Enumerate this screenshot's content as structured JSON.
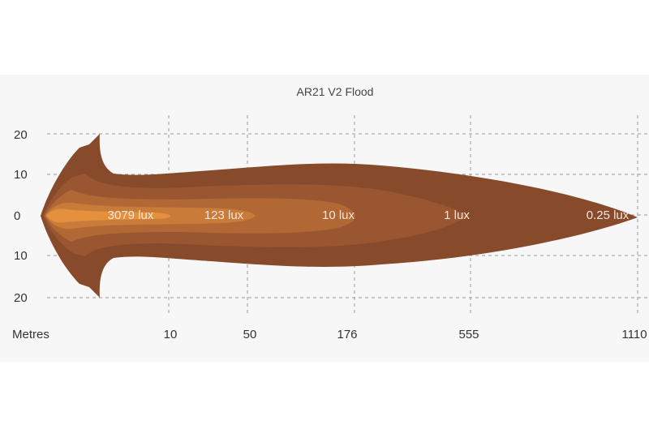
{
  "chart_data": {
    "type": "area",
    "title": "AR21 V2 Flood",
    "xlabel": "Metres",
    "x_ticks": [
      "10",
      "50",
      "176",
      "555",
      "1110"
    ],
    "y_ticks": [
      "20",
      "10",
      "0",
      "10",
      "20"
    ],
    "grid": true,
    "isolux_contours": [
      {
        "label": "0.25 lux",
        "reach_m": 1110,
        "color": "#874a2a"
      },
      {
        "label": "1 lux",
        "reach_m": 555,
        "color": "#9a5631"
      },
      {
        "label": "10 lux",
        "reach_m": 176,
        "color": "#b26835"
      },
      {
        "label": "123 lux",
        "reach_m": 50,
        "color": "#c97b39"
      },
      {
        "label": "3079 lux",
        "reach_m": 10,
        "color": "#e5903c"
      }
    ],
    "background": "#f7f7f7"
  }
}
